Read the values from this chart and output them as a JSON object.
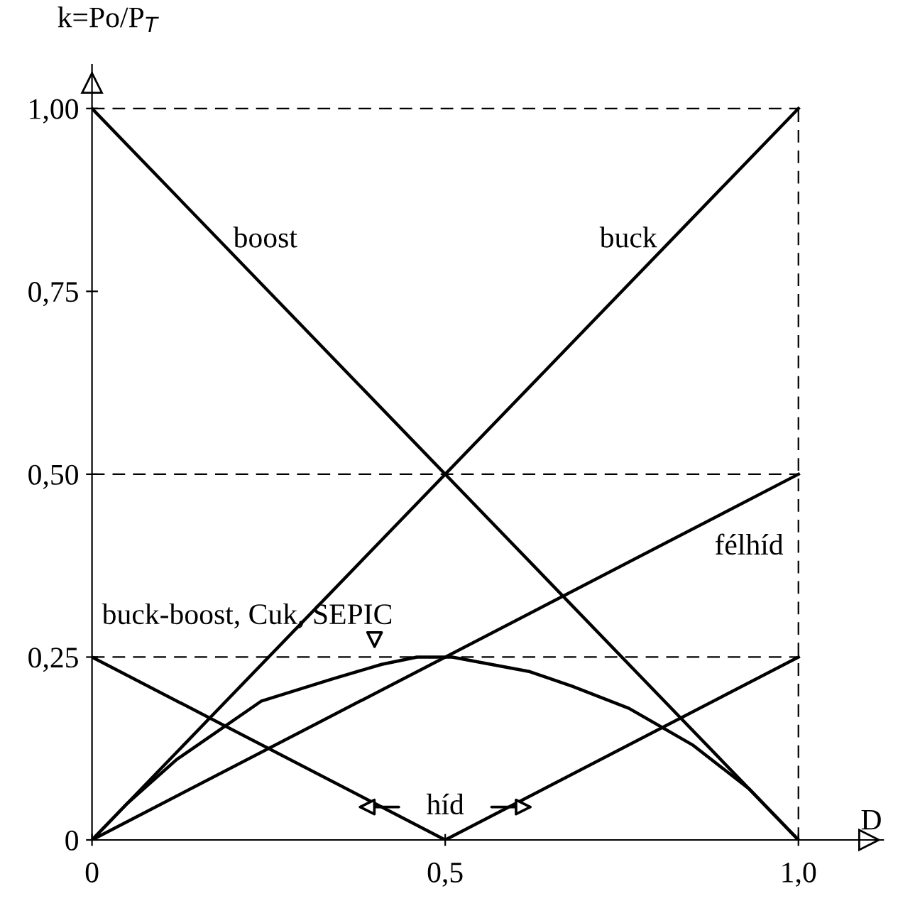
{
  "chart_data": {
    "type": "line",
    "xlabel": "D",
    "ylabel": "k=Po/P$_{T}$",
    "xlim": [
      0,
      1.12
    ],
    "ylim": [
      0,
      1.06
    ],
    "xticks": [
      0,
      {
        "value": 0.5,
        "label": "0,5"
      },
      {
        "value": 1.0,
        "label": "1,0"
      }
    ],
    "yticks": [
      0,
      {
        "value": 0.25,
        "label": "0,25"
      },
      {
        "value": 0.5,
        "label": "0,50"
      },
      {
        "value": 0.75,
        "label": "0,75"
      },
      {
        "value": 1.0,
        "label": "1,00"
      }
    ],
    "grid": false,
    "line_style": "solid",
    "series": [
      {
        "name": "boost",
        "color": "#000000",
        "x": [
          0,
          1
        ],
        "values": [
          1,
          0
        ]
      },
      {
        "name": "buck",
        "color": "#000000",
        "x": [
          0,
          1
        ],
        "values": [
          0,
          1
        ]
      },
      {
        "name": "félhíd",
        "color": "#000000",
        "x": [
          0,
          1
        ],
        "values": [
          0,
          0.5
        ]
      },
      {
        "name": "buck-boost, Cuk, SEPIC",
        "color": "#000000",
        "x": [
          0,
          0.05,
          0.12,
          0.24,
          0.34,
          0.41,
          0.46,
          0.51,
          0.62,
          0.68,
          0.76,
          0.85,
          0.93,
          1
        ],
        "values": [
          0,
          0.05,
          0.11,
          0.19,
          0.22,
          0.24,
          0.25,
          0.25,
          0.23,
          0.21,
          0.18,
          0.13,
          0.07,
          0
        ]
      },
      {
        "name": "híd",
        "color": "#000000",
        "x": [
          0,
          0.5,
          1
        ],
        "values": [
          0.25,
          0,
          0.25
        ]
      }
    ],
    "ref_lines": [
      {
        "axis": "y",
        "value": 1.0,
        "color": "#000000",
        "line_style": "dashed"
      },
      {
        "axis": "y",
        "value": 0.5,
        "color": "#000000",
        "line_style": "dashed"
      },
      {
        "axis": "y",
        "value": 0.25,
        "color": "#000000",
        "line_style": "dashed"
      },
      {
        "axis": "x",
        "value": 1.0,
        "color": "#000000",
        "line_style": "dashed"
      }
    ]
  }
}
